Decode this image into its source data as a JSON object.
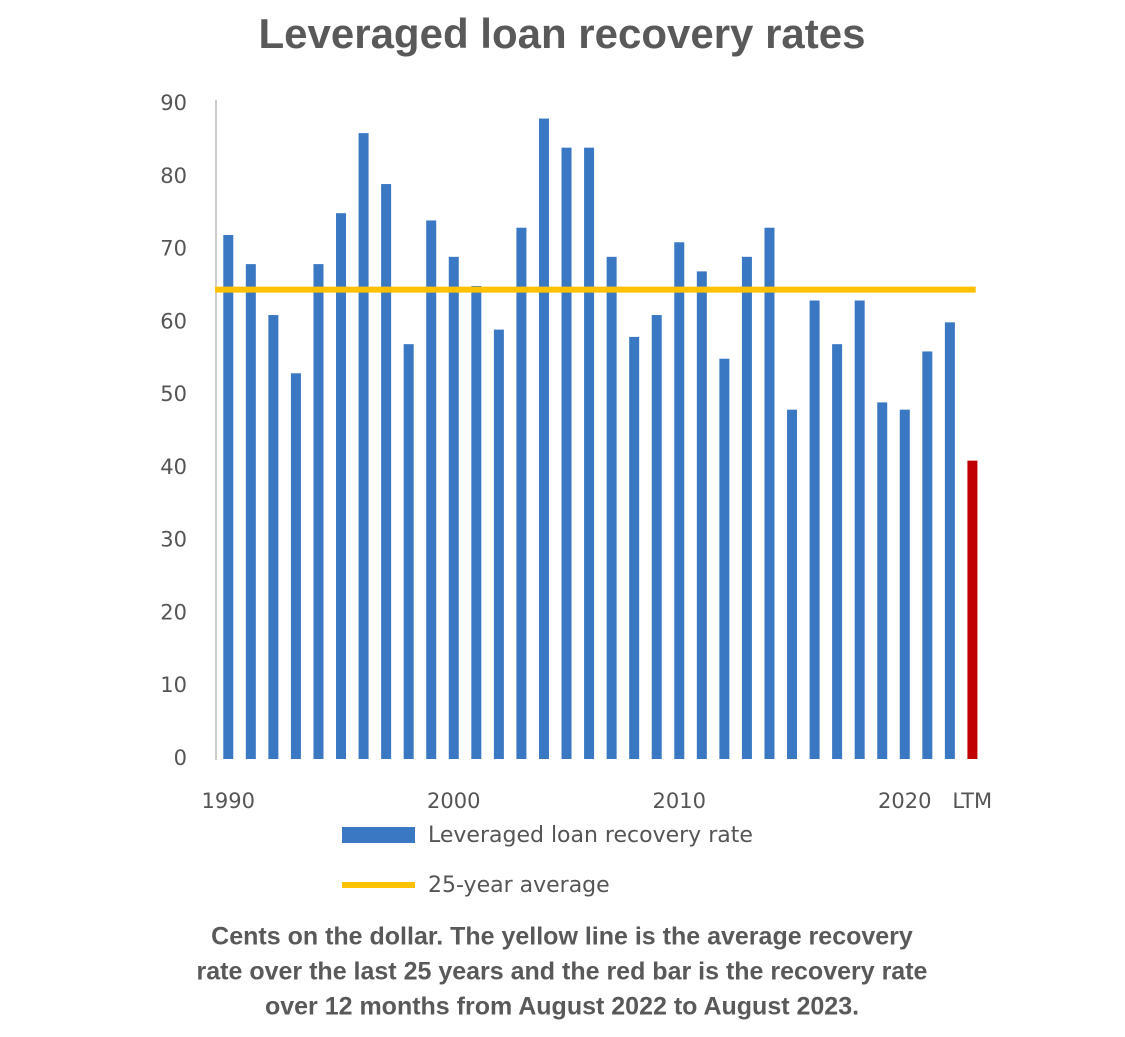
{
  "chart_data": {
    "type": "bar",
    "title": "Leveraged loan recovery rates",
    "caption": [
      "Cents on the dollar. The yellow line is the average recovery",
      "rate over the last 25 years and the red bar is the recovery rate",
      "over 12 months from August 2022 to August 2023."
    ],
    "categories": [
      "1990",
      null,
      null,
      null,
      null,
      null,
      null,
      null,
      null,
      null,
      "2000",
      null,
      null,
      null,
      null,
      null,
      null,
      null,
      null,
      null,
      "2010",
      null,
      null,
      null,
      null,
      null,
      null,
      null,
      null,
      null,
      "2020",
      null,
      null,
      "LTM"
    ],
    "series": [
      {
        "name": "Leveraged loan recovery rate",
        "color": "#3a78c3",
        "values": [
          72,
          68,
          61,
          53,
          68,
          75,
          86,
          79,
          57,
          74,
          69,
          65,
          59,
          73,
          88,
          84,
          84,
          69,
          58,
          61,
          71,
          67,
          55,
          69,
          73,
          48,
          63,
          57,
          63,
          49,
          48,
          56,
          60,
          41
        ],
        "colors": [
          "#3a78c3",
          "#3a78c3",
          "#3a78c3",
          "#3a78c3",
          "#3a78c3",
          "#3a78c3",
          "#3a78c3",
          "#3a78c3",
          "#3a78c3",
          "#3a78c3",
          "#3a78c3",
          "#3a78c3",
          "#3a78c3",
          "#3a78c3",
          "#3a78c3",
          "#3a78c3",
          "#3a78c3",
          "#3a78c3",
          "#3a78c3",
          "#3a78c3",
          "#3a78c3",
          "#3a78c3",
          "#3a78c3",
          "#3a78c3",
          "#3a78c3",
          "#3a78c3",
          "#3a78c3",
          "#3a78c3",
          "#3a78c3",
          "#3a78c3",
          "#3a78c3",
          "#3a78c3",
          "#3a78c3",
          "#c00000"
        ]
      }
    ],
    "reference_line": {
      "name": "25-year average",
      "value": 64.5,
      "color": "#ffc000"
    },
    "ylim": [
      0,
      90
    ],
    "yticks": [
      0,
      10,
      20,
      30,
      40,
      50,
      60,
      70,
      80,
      90
    ],
    "grid": false
  }
}
